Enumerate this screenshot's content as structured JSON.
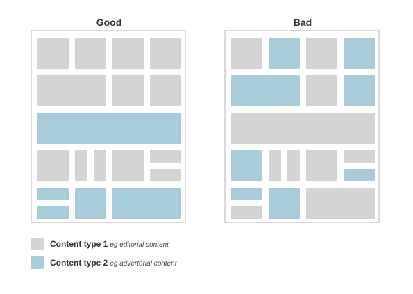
{
  "colors": {
    "type1": "#d4d4d4",
    "type2": "#a8ccd9",
    "frame": "#d9d9d9"
  },
  "panels": [
    {
      "title": "Good",
      "blocks": [
        {
          "type": 1
        },
        {
          "type": 1
        },
        {
          "type": 1
        },
        {
          "type": 1
        },
        {
          "type": 1
        },
        {
          "type": 1
        },
        {
          "type": 1
        },
        {
          "type": 2
        },
        {
          "type": 1
        },
        {
          "type": 1
        },
        {
          "type": 1
        },
        {
          "type": 1
        },
        {
          "type": 1
        },
        {
          "type": 1
        },
        {
          "type": 2
        },
        {
          "type": 2
        },
        {
          "type": 2
        },
        {
          "type": 2
        }
      ]
    },
    {
      "title": "Bad",
      "blocks": [
        {
          "type": 1
        },
        {
          "type": 2
        },
        {
          "type": 1
        },
        {
          "type": 2
        },
        {
          "type": 2
        },
        {
          "type": 1
        },
        {
          "type": 2
        },
        {
          "type": 1
        },
        {
          "type": 2
        },
        {
          "type": 1
        },
        {
          "type": 1
        },
        {
          "type": 1
        },
        {
          "type": 1
        },
        {
          "type": 2
        },
        {
          "type": 2
        },
        {
          "type": 1
        },
        {
          "type": 2
        },
        {
          "type": 1
        }
      ]
    }
  ],
  "legend": [
    {
      "label": "Content type 1",
      "note": "eg editorial content",
      "type": 1
    },
    {
      "label": "Content type 2",
      "note": "eg advertorial content",
      "type": 2
    }
  ]
}
